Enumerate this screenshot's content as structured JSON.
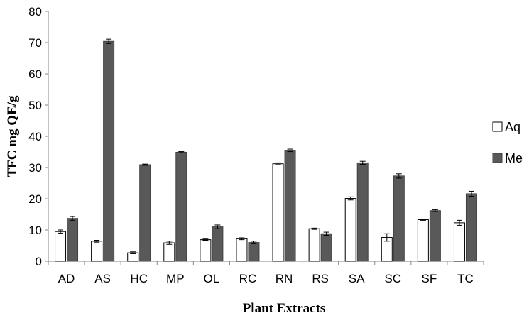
{
  "chart_data": {
    "type": "bar",
    "xlabel": "Plant Extracts",
    "ylabel": "TFC mg QE/g",
    "ylim": [
      0,
      80
    ],
    "yticks": [
      0,
      10,
      20,
      30,
      40,
      50,
      60,
      70,
      80
    ],
    "grid": false,
    "legend_position": "right",
    "categories": [
      "AD",
      "AS",
      "HC",
      "MP",
      "OL",
      "RC",
      "RN",
      "RS",
      "SA",
      "SC",
      "SF",
      "TC"
    ],
    "series": [
      {
        "name": "Aq",
        "fill": "#ffffff",
        "stroke": "#000000",
        "values": [
          9.5,
          6.4,
          2.7,
          5.9,
          6.9,
          7.2,
          31.2,
          10.4,
          20.1,
          7.6,
          13.3,
          12.3
        ],
        "errors": [
          0.5,
          0.3,
          0.3,
          0.5,
          0.2,
          0.3,
          0.3,
          0.2,
          0.5,
          1.2,
          0.2,
          0.8
        ]
      },
      {
        "name": "Me",
        "fill": "#595959",
        "stroke": "#404040",
        "values": [
          13.7,
          70.4,
          30.9,
          34.9,
          11.0,
          6.0,
          35.5,
          8.8,
          31.5,
          27.3,
          16.2,
          21.6
        ],
        "errors": [
          0.6,
          0.7,
          0.2,
          0.2,
          0.6,
          0.4,
          0.4,
          0.5,
          0.5,
          0.7,
          0.3,
          0.8
        ]
      }
    ]
  }
}
